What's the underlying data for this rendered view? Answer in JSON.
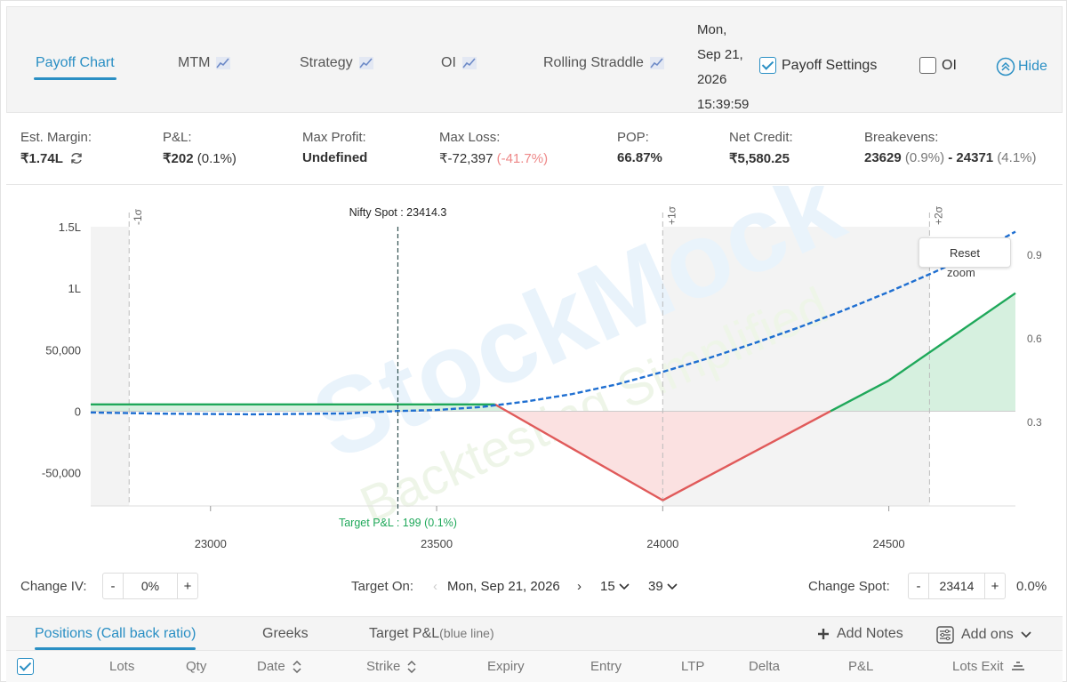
{
  "tabs": [
    {
      "label": "Payoff Chart",
      "active": true
    },
    {
      "label": "MTM"
    },
    {
      "label": "Strategy"
    },
    {
      "label": "OI"
    },
    {
      "label": "Rolling Straddle"
    }
  ],
  "datetime": {
    "l1": "Mon,",
    "l2": "Sep 21,",
    "l3": "2026",
    "l4": "15:39:59"
  },
  "payoff_settings": {
    "label": "Payoff Settings",
    "checked": true
  },
  "oi_toggle": {
    "label": "OI",
    "checked": false
  },
  "hide_label": "Hide",
  "stats": {
    "margin": {
      "label": "Est. Margin:",
      "value": "₹1.74L"
    },
    "pnl": {
      "label": "P&L:",
      "value": "₹202",
      "pct": "(0.1%)"
    },
    "max_profit": {
      "label": "Max Profit:",
      "value": "Undefined"
    },
    "max_loss": {
      "label": "Max Loss:",
      "value": "₹-72,397",
      "pct": "(-41.7%)"
    },
    "pop": {
      "label": "POP:",
      "value": "66.87%"
    },
    "net_credit": {
      "label": "Net Credit:",
      "value": "₹5,580.25"
    },
    "breakevens": {
      "label": "Breakevens:",
      "v1": "23629",
      "p1": "(0.9%)",
      "sep": "-",
      "v2": "24371",
      "p2": "(4.1%)"
    }
  },
  "chart_data": {
    "type": "area",
    "x_ticks": [
      "23000",
      "23500",
      "24000",
      "24500"
    ],
    "y_ticks": [
      "1.5L",
      "1L",
      "50,000",
      "0",
      "-50,000"
    ],
    "y2_ticks": [
      "0.9",
      "0.6",
      "0.3"
    ],
    "xlim": [
      22735,
      24780
    ],
    "ylim": [
      -77000,
      150000
    ],
    "spot_label": "Nifty Spot : 23414.3",
    "spot_x": 23414.3,
    "target_label": "Target P&L : 199 (0.1%)",
    "sigma_lines": [
      {
        "label": "-1σ",
        "x": 22820
      },
      {
        "label": "+1σ",
        "x": 24000
      },
      {
        "label": "+2σ",
        "x": 24590
      }
    ],
    "series": [
      {
        "x": [
          22735,
          23629,
          24000,
          24371,
          24500,
          24780
        ],
        "y": [
          5580,
          5580,
          -72397,
          0,
          25000,
          96000
        ]
      },
      {
        "x": [
          22735,
          22900,
          23100,
          23300,
          23414,
          23500,
          23600,
          23700,
          23800,
          23900,
          24000,
          24100,
          24200,
          24300,
          24400,
          24500,
          24600,
          24700,
          24780
        ],
        "y": [
          -1000,
          -2000,
          -2500,
          -1800,
          200,
          1000,
          3500,
          8000,
          14000,
          22000,
          32000,
          43000,
          55000,
          68000,
          82000,
          97000,
          113000,
          130000,
          146000
        ]
      }
    ],
    "reset_zoom": {
      "l1": "Reset",
      "l2": "zoom"
    },
    "watermark": {
      "l1": "StockMock",
      "l2": "Backtesting Simplified"
    }
  },
  "controls": {
    "change_iv_label": "Change IV:",
    "iv_value": "0%",
    "target_on_label": "Target On:",
    "target_date": "Mon, Sep 21, 2026",
    "target_hour": "15",
    "target_min": "39",
    "change_spot_label": "Change Spot:",
    "spot_value": "23414",
    "spot_pct": "0.0%"
  },
  "bottom_tabs": {
    "positions": "Positions (Call back ratio)",
    "greeks": "Greeks",
    "target_pnl": "Target P&L",
    "target_pnl_sub": "(blue line)",
    "add_notes": "Add Notes",
    "add_ons": "Add ons"
  },
  "columns": [
    "Lots",
    "Qty",
    "Date",
    "Strike",
    "Expiry",
    "Entry",
    "LTP",
    "Delta",
    "P&L",
    "Lots Exit"
  ],
  "colors": {
    "accent": "#2a8fc4",
    "profit": "#1fa85a",
    "loss": "#e05a5a",
    "target": "#1f6fd1"
  }
}
